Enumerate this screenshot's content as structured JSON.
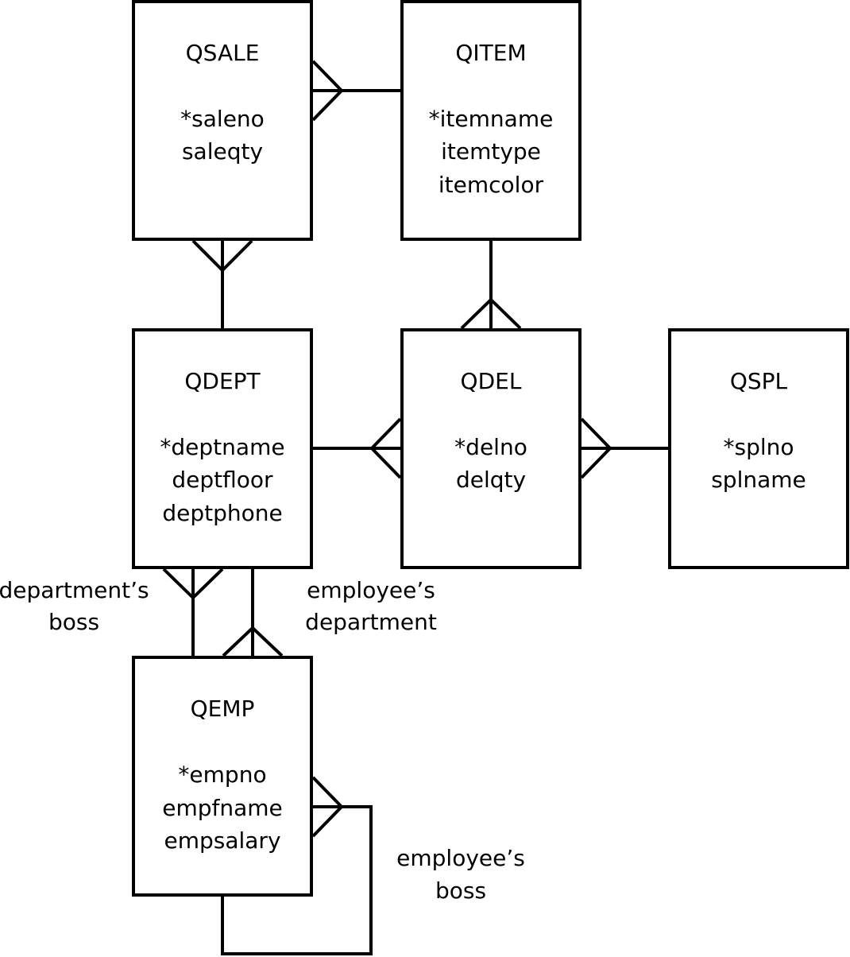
{
  "entities": {
    "qsale": {
      "name": "QSALE",
      "attrs": [
        "*saleno",
        "saleqty"
      ]
    },
    "qitem": {
      "name": "QITEM",
      "attrs": [
        "*itemname",
        "itemtype",
        "itemcolor"
      ]
    },
    "qdept": {
      "name": "QDEPT",
      "attrs": [
        "*deptname",
        "deptfloor",
        "deptphone"
      ]
    },
    "qdel": {
      "name": "QDEL",
      "attrs": [
        "*delno",
        "delqty"
      ]
    },
    "qspl": {
      "name": "QSPL",
      "attrs": [
        "*splno",
        "splname"
      ]
    },
    "qemp": {
      "name": "QEMP",
      "attrs": [
        "*empno",
        "empfname",
        "empsalary"
      ]
    }
  },
  "relationship_labels": {
    "departments_boss": [
      "department’s",
      "boss"
    ],
    "employees_department": [
      "employee’s",
      "department"
    ],
    "employees_boss": [
      "employee’s",
      "boss"
    ]
  },
  "relationships": [
    {
      "one": "QITEM",
      "many": "QSALE"
    },
    {
      "one": "QDEPT",
      "many": "QSALE"
    },
    {
      "one": "QITEM",
      "many": "QDEL"
    },
    {
      "one": "QDEPT",
      "many": "QDEL"
    },
    {
      "one": "QSPL",
      "many": "QDEL"
    },
    {
      "one": "QEMP",
      "many": "QDEPT",
      "label": "department’s boss"
    },
    {
      "one": "QDEPT",
      "many": "QEMP",
      "label": "employee’s department"
    },
    {
      "one": "QEMP",
      "many": "QEMP",
      "label": "employee’s boss"
    }
  ]
}
